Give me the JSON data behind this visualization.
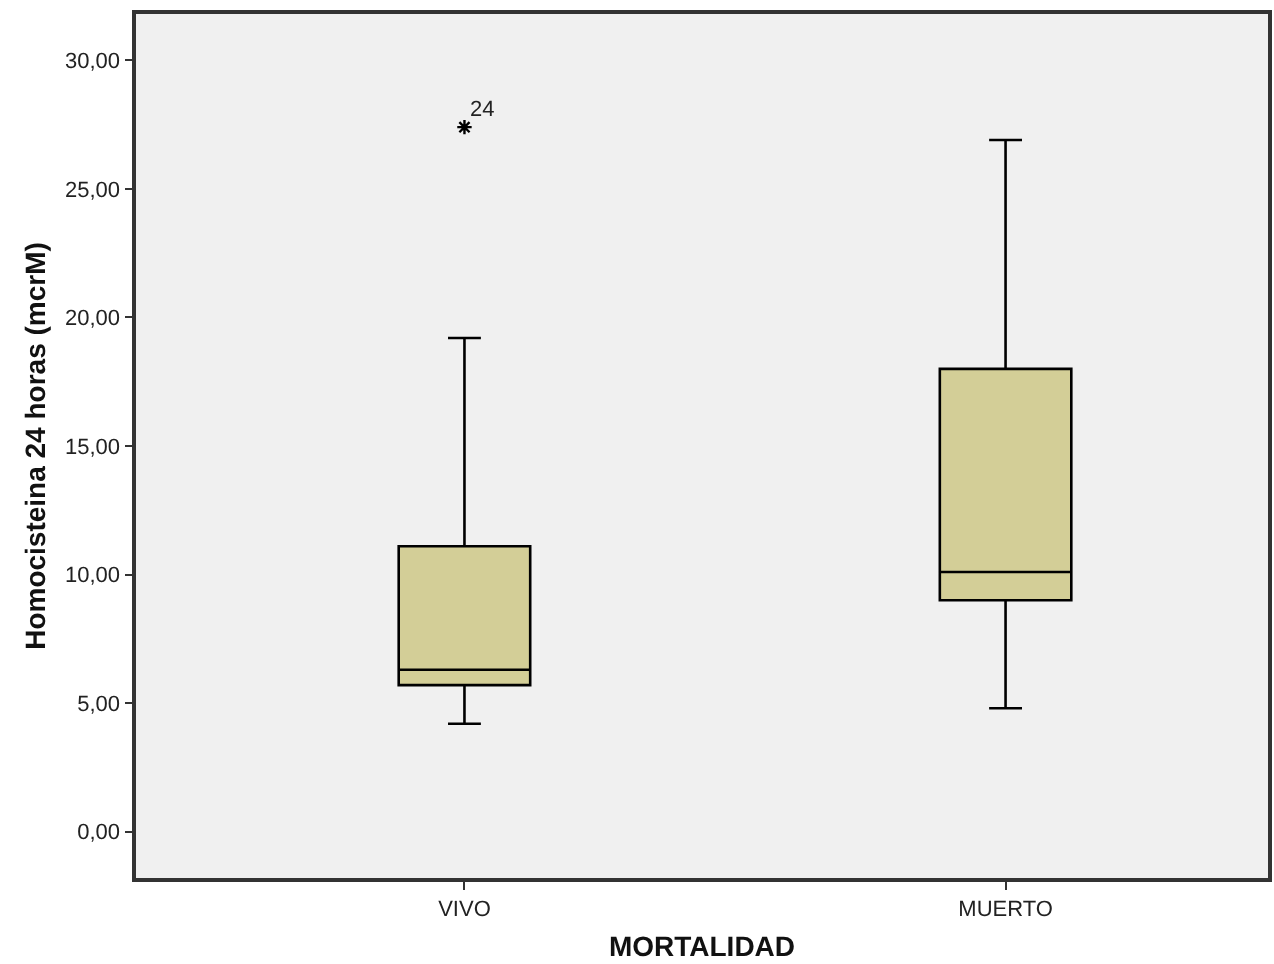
{
  "chart_data": {
    "type": "box",
    "xlabel": "MORTALIDAD",
    "ylabel": "Homocisteina 24 horas (mcrM)",
    "categories": [
      "VIVO",
      "MUERTO"
    ],
    "boxes": [
      {
        "low": 4.2,
        "q1": 5.7,
        "median": 6.3,
        "q3": 11.1,
        "high": 19.2,
        "outliers": [
          27.4
        ]
      },
      {
        "low": 4.8,
        "q1": 9.0,
        "median": 10.1,
        "q3": 18.0,
        "high": 26.9
      }
    ],
    "color": "#d3ce97",
    "marker": "star",
    "grid": false,
    "legend": false,
    "ylim": [
      -1.8,
      31.8
    ],
    "yticks": [
      {
        "value": 0,
        "label": "0,00"
      },
      {
        "value": 5,
        "label": "5,00"
      },
      {
        "value": 10,
        "label": "10,00"
      },
      {
        "value": 15,
        "label": "15,00"
      },
      {
        "value": 20,
        "label": "20,00"
      },
      {
        "value": 25,
        "label": "25,00"
      },
      {
        "value": 30,
        "label": "30,00"
      }
    ],
    "annotations": [
      "24"
    ]
  }
}
